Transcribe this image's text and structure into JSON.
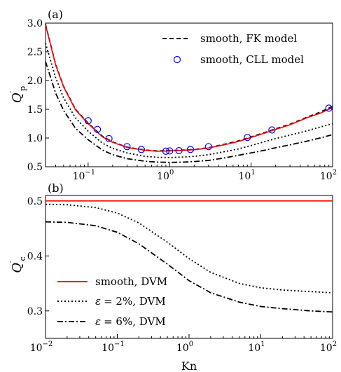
{
  "chart_data": [
    {
      "id": "a",
      "panel_label": "(a)",
      "type": "line",
      "xscale": "log",
      "xlim": [
        0.03,
        100
      ],
      "ylim": [
        0.5,
        3.0
      ],
      "ylabel_main": "Q",
      "ylabel_prime": "′",
      "ylabel_sub": "p",
      "yticks": [
        0.5,
        1.0,
        1.5,
        2.0,
        2.5,
        3.0
      ],
      "ytick_labels": [
        "0.5",
        "1.0",
        "1.5",
        "2.0",
        "2.5",
        "3.0"
      ],
      "xticks": [
        0.1,
        1,
        10,
        100
      ],
      "xtick_base": "10",
      "xtick_exps": [
        "−1",
        "0",
        "1",
        "2"
      ],
      "legend_location": "top-right",
      "legend": [
        "smooth, FK model",
        "smooth, CLL model"
      ],
      "series": [
        {
          "name": "smooth, FK model",
          "style": "dashed",
          "color": "#000000",
          "x": [
            0.03,
            0.04,
            0.05,
            0.07,
            0.1,
            0.15,
            0.2,
            0.3,
            0.5,
            0.7,
            1,
            1.5,
            2,
            3,
            5,
            7,
            10,
            15,
            20,
            30,
            50,
            70,
            100
          ],
          "y": [
            2.98,
            2.28,
            1.9,
            1.5,
            1.26,
            1.03,
            0.93,
            0.84,
            0.79,
            0.775,
            0.78,
            0.79,
            0.8,
            0.83,
            0.9,
            0.95,
            1.02,
            1.1,
            1.16,
            1.24,
            1.37,
            1.45,
            1.55
          ]
        },
        {
          "name": "",
          "style": "solid",
          "color": "#ff0000",
          "x": [
            0.03,
            0.04,
            0.05,
            0.07,
            0.1,
            0.15,
            0.2,
            0.3,
            0.5,
            0.7,
            1,
            1.5,
            2,
            3,
            5,
            7,
            10,
            15,
            20,
            30,
            50,
            70,
            100
          ],
          "y": [
            2.97,
            2.27,
            1.89,
            1.49,
            1.25,
            1.02,
            0.925,
            0.835,
            0.785,
            0.77,
            0.775,
            0.785,
            0.795,
            0.825,
            0.89,
            0.94,
            1.01,
            1.09,
            1.15,
            1.23,
            1.36,
            1.43,
            1.53
          ]
        },
        {
          "name": "",
          "style": "dotted",
          "color": "#000000",
          "x": [
            0.03,
            0.04,
            0.05,
            0.07,
            0.1,
            0.15,
            0.2,
            0.3,
            0.5,
            0.7,
            1,
            1.5,
            2,
            3,
            5,
            7,
            10,
            15,
            20,
            30,
            50,
            70,
            100
          ],
          "y": [
            2.65,
            2.05,
            1.7,
            1.35,
            1.12,
            0.91,
            0.82,
            0.74,
            0.68,
            0.665,
            0.66,
            0.67,
            0.68,
            0.71,
            0.77,
            0.81,
            0.87,
            0.94,
            0.99,
            1.05,
            1.13,
            1.19,
            1.25
          ]
        },
        {
          "name": "",
          "style": "dashdot",
          "color": "#000000",
          "x": [
            0.03,
            0.04,
            0.05,
            0.07,
            0.1,
            0.15,
            0.2,
            0.3,
            0.5,
            0.7,
            1,
            1.5,
            2,
            3,
            5,
            7,
            10,
            15,
            20,
            30,
            50,
            70,
            100
          ],
          "y": [
            2.33,
            1.78,
            1.48,
            1.17,
            0.97,
            0.79,
            0.71,
            0.64,
            0.595,
            0.58,
            0.575,
            0.58,
            0.59,
            0.61,
            0.66,
            0.7,
            0.74,
            0.79,
            0.83,
            0.88,
            0.95,
            1.0,
            1.06
          ]
        },
        {
          "name": "smooth, CLL model",
          "style": "markers",
          "color": "#0000ff",
          "x": [
            0.1,
            0.13,
            0.18,
            0.3,
            0.45,
            0.9,
            1.0,
            1.3,
            1.8,
            3,
            9,
            18,
            90
          ],
          "y": [
            1.3,
            1.15,
            0.99,
            0.85,
            0.8,
            0.77,
            0.775,
            0.78,
            0.8,
            0.85,
            1.01,
            1.14,
            1.52
          ]
        }
      ]
    },
    {
      "id": "b",
      "panel_label": "(b)",
      "type": "line",
      "xscale": "log",
      "xlim": [
        0.01,
        100
      ],
      "ylim": [
        0.25,
        0.51
      ],
      "xlabel": "Kn",
      "ylabel_main": "Q",
      "ylabel_prime": "′",
      "ylabel_sub": "c",
      "yticks": [
        0.3,
        0.4,
        0.5
      ],
      "ytick_labels": [
        "0.3",
        "0.4",
        "0.5"
      ],
      "xticks": [
        0.01,
        0.1,
        1,
        10,
        100
      ],
      "xtick_base": "10",
      "xtick_exps": [
        "−2",
        "−1",
        "0",
        "1",
        "2"
      ],
      "legend_location": "lower-left",
      "legend": [
        {
          "style": "solid",
          "color": "#ff0000",
          "text": "smooth, DVM",
          "eps": ""
        },
        {
          "style": "dotted",
          "color": "#000000",
          "text": "= 2%, DVM",
          "eps": "ε"
        },
        {
          "style": "dashdot",
          "color": "#000000",
          "text": "= 6%, DVM",
          "eps": "ε"
        }
      ],
      "series": [
        {
          "name": "smooth, DVM",
          "style": "solid",
          "color": "#ff0000",
          "x": [
            0.01,
            100
          ],
          "y": [
            0.5,
            0.5
          ]
        },
        {
          "name": "ε = 2%, DVM",
          "style": "dotted",
          "color": "#000000",
          "x": [
            0.01,
            0.02,
            0.05,
            0.1,
            0.2,
            0.5,
            1,
            2,
            5,
            10,
            20,
            50,
            100
          ],
          "y": [
            0.494,
            0.493,
            0.488,
            0.478,
            0.46,
            0.425,
            0.395,
            0.37,
            0.35,
            0.342,
            0.338,
            0.335,
            0.333
          ]
        },
        {
          "name": "ε = 6%, DVM",
          "style": "dashdot",
          "color": "#000000",
          "x": [
            0.01,
            0.02,
            0.05,
            0.1,
            0.2,
            0.5,
            1,
            2,
            5,
            10,
            20,
            50,
            100
          ],
          "y": [
            0.462,
            0.461,
            0.455,
            0.443,
            0.422,
            0.385,
            0.355,
            0.333,
            0.316,
            0.308,
            0.304,
            0.3,
            0.298
          ]
        }
      ]
    }
  ]
}
